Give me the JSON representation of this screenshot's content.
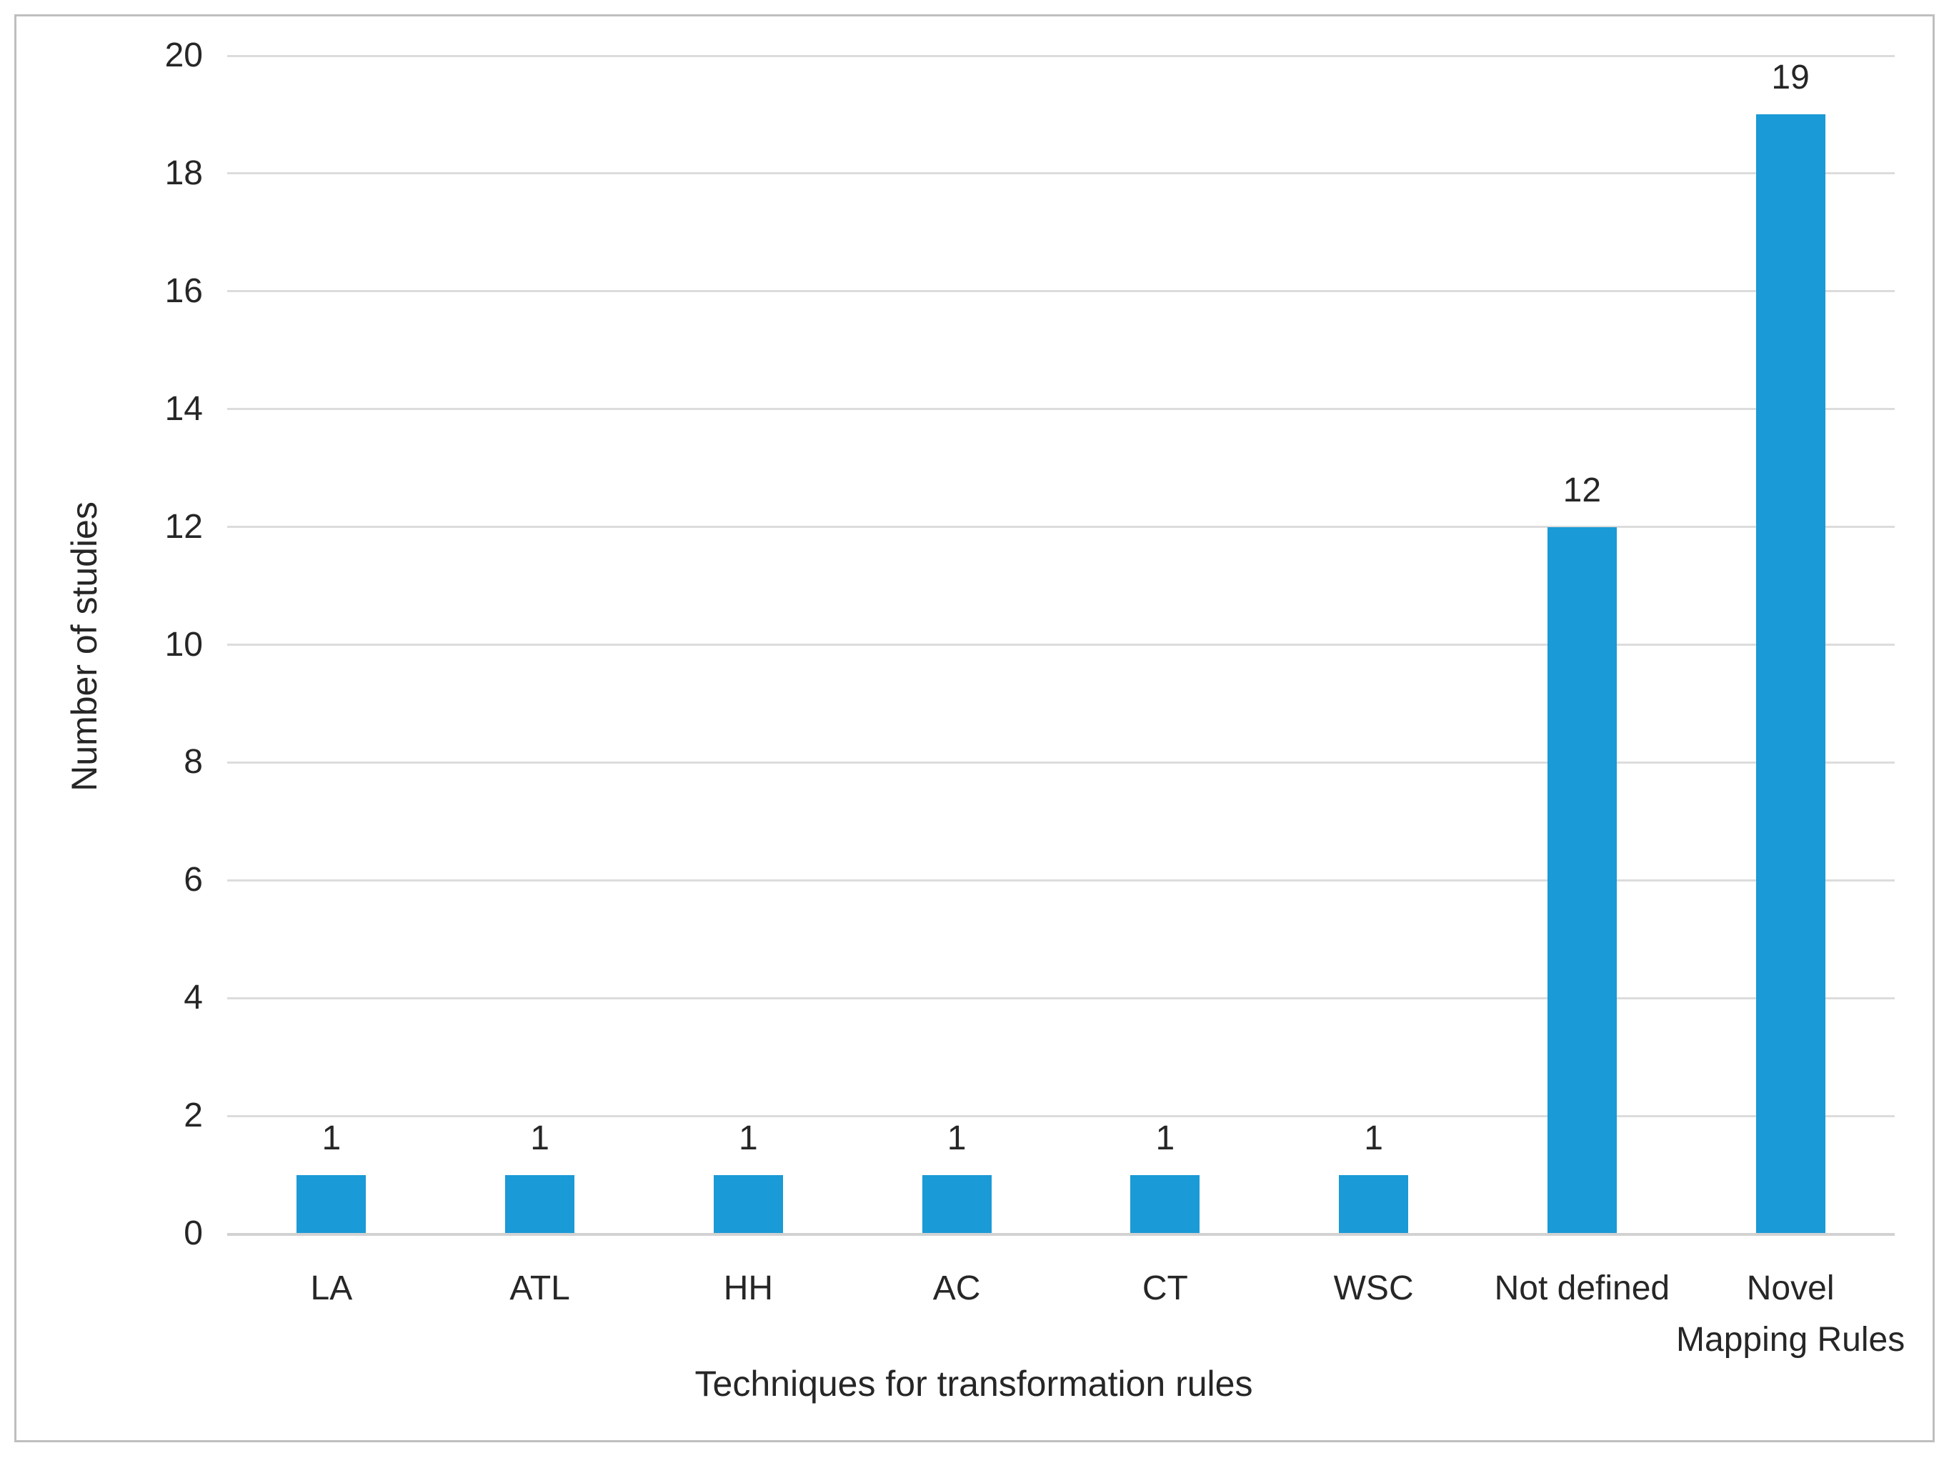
{
  "figure": {
    "background_color": "#FFFFFF",
    "border_color": "#BFBFBF"
  },
  "chart_data": {
    "type": "bar",
    "title": "",
    "categories": [
      "LA",
      "ATL",
      "HH",
      "AC",
      "CT",
      "WSC",
      "Not defined",
      "Novel\nMapping Rules"
    ],
    "values": [
      1,
      1,
      1,
      1,
      1,
      1,
      12,
      19
    ],
    "data_labels": [
      "1",
      "1",
      "1",
      "1",
      "1",
      "1",
      "12",
      "19"
    ],
    "xlabel": "Techniques for transformation rules",
    "ylabel": "Number of studies",
    "ylim": [
      0,
      20
    ],
    "ytick_step": 2,
    "y_ticks": [
      "0",
      "2",
      "4",
      "6",
      "8",
      "10",
      "12",
      "14",
      "16",
      "18",
      "20"
    ],
    "grid": true,
    "legend_position": "none",
    "bar_color": "#1A9AD6",
    "gridline_color": "#DCDCDC",
    "axis_line_color": "#D2D2D2",
    "text_color": "#262626"
  }
}
